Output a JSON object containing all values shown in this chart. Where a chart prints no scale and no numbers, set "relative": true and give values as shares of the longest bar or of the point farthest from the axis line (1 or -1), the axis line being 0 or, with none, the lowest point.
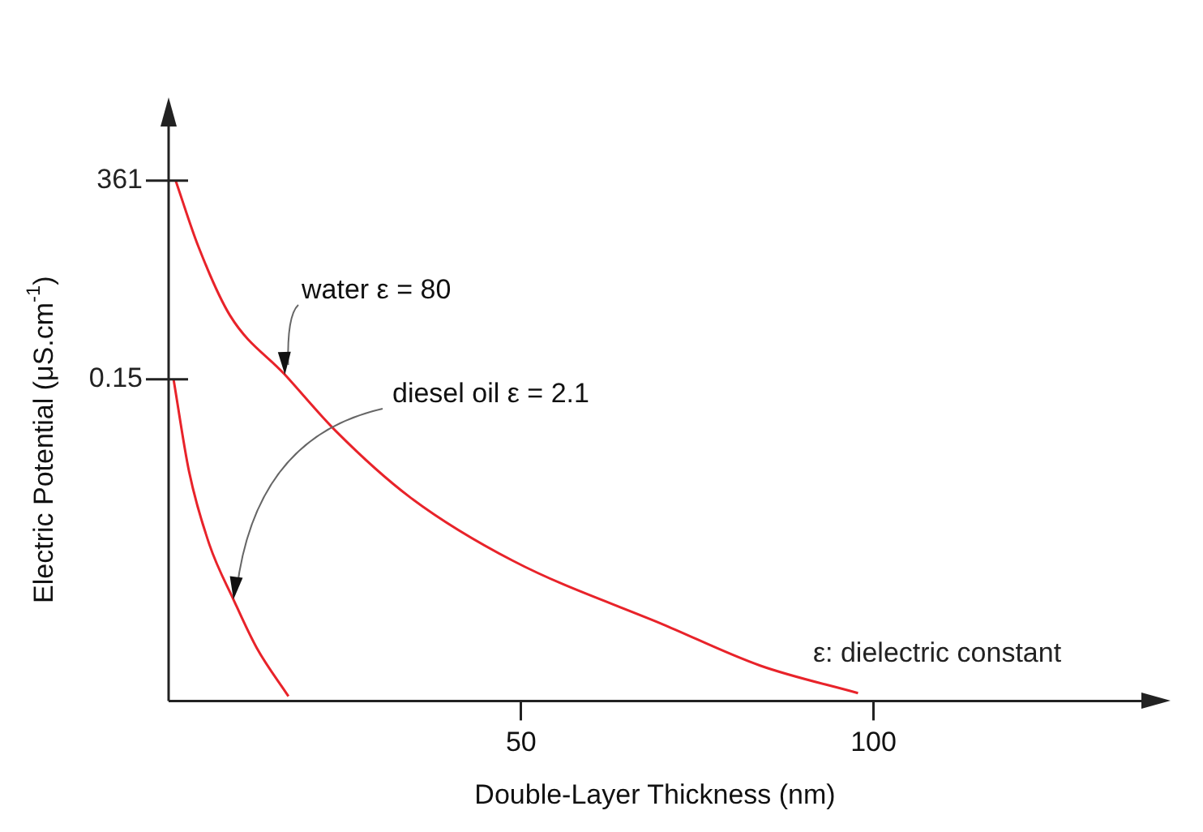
{
  "chart_data": {
    "type": "line",
    "relative": true,
    "xlabel": "Double-Layer Thickness (nm)",
    "ylabel": "Electric Potential (μS.cm$^{-1}$)",
    "xlim": [
      0,
      138
    ],
    "xticks": [
      50,
      100
    ],
    "series": [
      {
        "name": "water ε = 80",
        "color": "#e8232a",
        "x": [
          1,
          4.2,
          8.7,
          16.5,
          23.7,
          34.2,
          48.9,
          70.5,
          83.9,
          97.8
        ],
        "values": [
          1,
          0.874,
          0.741,
          0.627,
          0.519,
          0.392,
          0.269,
          0.145,
          0.068,
          0.015
        ]
      },
      {
        "name": "diesel oil ε = 2.1",
        "color": "#e8232a",
        "x": [
          0.7,
          2.9,
          5.8,
          9.2,
          12.5,
          17
        ],
        "values": [
          0.618,
          0.441,
          0.3,
          0.195,
          0.102,
          0.009
        ]
      }
    ],
    "annotations": [
      "361",
      "0.15",
      "ε: dielectric constant"
    ],
    "grid": false,
    "legend": false,
    "marker": "none",
    "line_style": "solid"
  }
}
